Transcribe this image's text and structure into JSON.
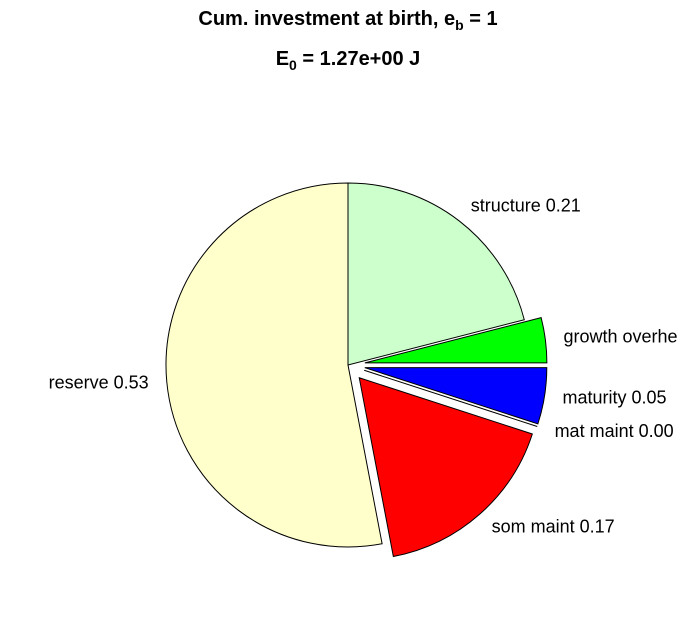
{
  "chart_data": {
    "type": "pie",
    "title": [
      [
        "Cum. investment at birth, e",
        "b",
        " = 1"
      ],
      [
        "E",
        "0",
        " = 1.27e+00 J"
      ]
    ],
    "labels": [
      "structure 0.21",
      "growth overhe",
      "maturity 0.05",
      "mat maint 0.00",
      "som maint 0.17",
      "reserve 0.53"
    ],
    "values": [
      0.21,
      0.04,
      0.05,
      0.0,
      0.17,
      0.53
    ],
    "colors": [
      "#ccffcc",
      "#00ff00",
      "#0000ff",
      "#ffffff",
      "#ff0000",
      "#ffffcc"
    ],
    "explode": [
      false,
      true,
      true,
      true,
      true,
      false
    ]
  }
}
